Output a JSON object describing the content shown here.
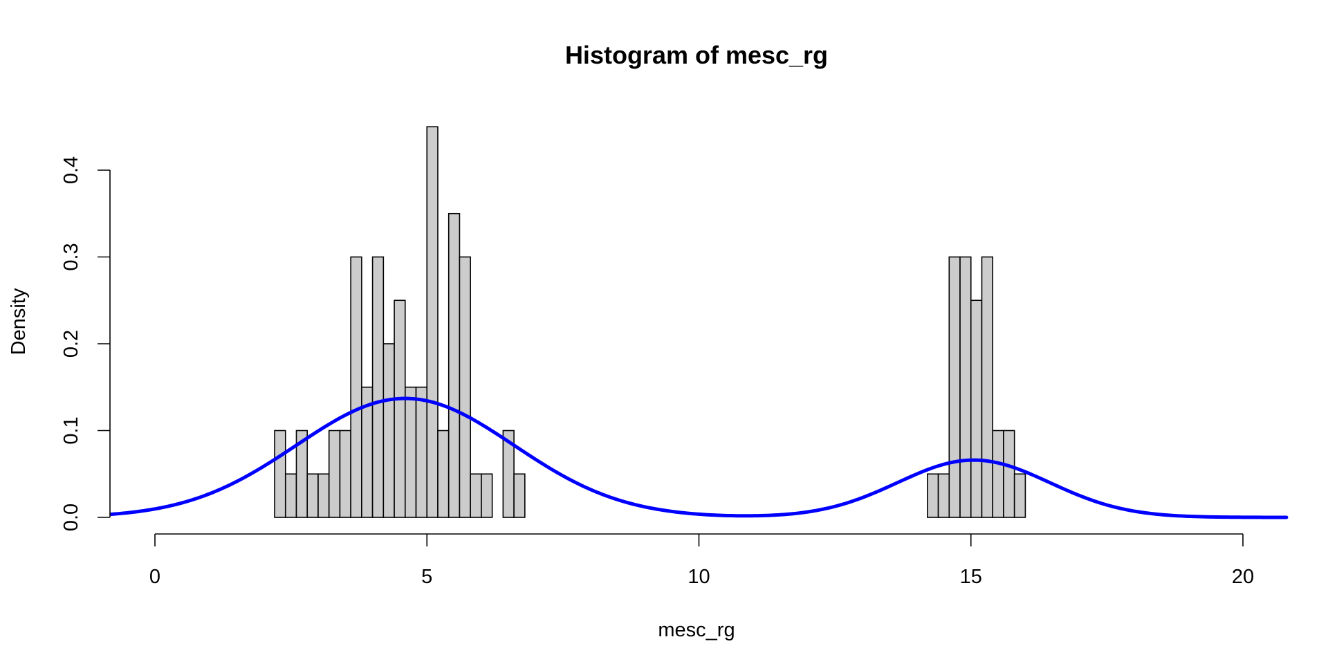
{
  "chart_data": {
    "type": "bar",
    "title": "Histogram of mesc_rg",
    "xlabel": "mesc_rg",
    "ylabel": "Density",
    "xlim": [
      -0.8,
      20.8
    ],
    "ylim": [
      0,
      0.45
    ],
    "x_ticks": [
      0,
      5,
      10,
      15,
      20
    ],
    "y_ticks": [
      0.0,
      0.1,
      0.2,
      0.3,
      0.4
    ],
    "x_tick_labels": [
      "0",
      "5",
      "10",
      "15",
      "20"
    ],
    "y_tick_labels": [
      "0.0",
      "0.1",
      "0.2",
      "0.3",
      "0.4"
    ],
    "grid": false,
    "bin_width": 0.2,
    "bars": [
      {
        "x0": 2.2,
        "x1": 2.4,
        "density": 0.1
      },
      {
        "x0": 2.4,
        "x1": 2.6,
        "density": 0.05
      },
      {
        "x0": 2.6,
        "x1": 2.8,
        "density": 0.1
      },
      {
        "x0": 2.8,
        "x1": 3.0,
        "density": 0.05
      },
      {
        "x0": 3.0,
        "x1": 3.2,
        "density": 0.05
      },
      {
        "x0": 3.2,
        "x1": 3.4,
        "density": 0.1
      },
      {
        "x0": 3.4,
        "x1": 3.6,
        "density": 0.1
      },
      {
        "x0": 3.6,
        "x1": 3.8,
        "density": 0.3
      },
      {
        "x0": 3.8,
        "x1": 4.0,
        "density": 0.15
      },
      {
        "x0": 4.0,
        "x1": 4.2,
        "density": 0.3
      },
      {
        "x0": 4.2,
        "x1": 4.4,
        "density": 0.2
      },
      {
        "x0": 4.4,
        "x1": 4.6,
        "density": 0.25
      },
      {
        "x0": 4.6,
        "x1": 4.8,
        "density": 0.15
      },
      {
        "x0": 4.8,
        "x1": 5.0,
        "density": 0.15
      },
      {
        "x0": 5.0,
        "x1": 5.2,
        "density": 0.45
      },
      {
        "x0": 5.2,
        "x1": 5.4,
        "density": 0.1
      },
      {
        "x0": 5.4,
        "x1": 5.6,
        "density": 0.35
      },
      {
        "x0": 5.6,
        "x1": 5.8,
        "density": 0.3
      },
      {
        "x0": 5.8,
        "x1": 6.0,
        "density": 0.05
      },
      {
        "x0": 6.0,
        "x1": 6.2,
        "density": 0.05
      },
      {
        "x0": 6.2,
        "x1": 6.4,
        "density": 0.0
      },
      {
        "x0": 6.4,
        "x1": 6.6,
        "density": 0.1
      },
      {
        "x0": 6.6,
        "x1": 6.8,
        "density": 0.05
      },
      {
        "x0": 6.8,
        "x1": 14.2,
        "density": 0.0
      },
      {
        "x0": 14.2,
        "x1": 14.4,
        "density": 0.05
      },
      {
        "x0": 14.4,
        "x1": 14.6,
        "density": 0.05
      },
      {
        "x0": 14.6,
        "x1": 14.8,
        "density": 0.3
      },
      {
        "x0": 14.8,
        "x1": 15.0,
        "density": 0.3
      },
      {
        "x0": 15.0,
        "x1": 15.2,
        "density": 0.25
      },
      {
        "x0": 15.2,
        "x1": 15.4,
        "density": 0.3
      },
      {
        "x0": 15.4,
        "x1": 15.6,
        "density": 0.1
      },
      {
        "x0": 15.6,
        "x1": 15.8,
        "density": 0.1
      },
      {
        "x0": 15.8,
        "x1": 16.0,
        "density": 0.05
      }
    ],
    "density_curve": {
      "color": "#0000ff",
      "components": [
        {
          "mean": 4.6,
          "sd": 2.0,
          "peak": 0.137
        },
        {
          "mean": 15.05,
          "sd": 1.4,
          "peak": 0.066
        }
      ],
      "x_range": [
        -0.8,
        20.8
      ]
    },
    "colors": {
      "bar_fill": "#cccccc",
      "bar_stroke": "#000000",
      "curve": "#0000ff"
    }
  }
}
